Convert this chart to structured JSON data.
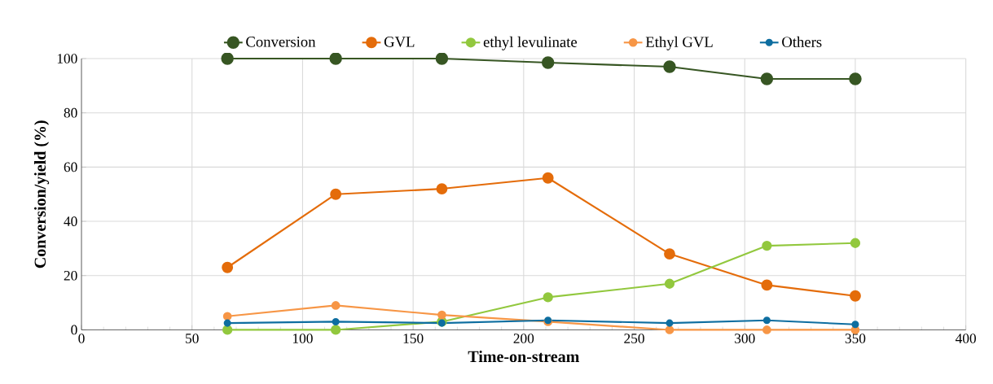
{
  "chart_data": {
    "type": "line",
    "xlabel": "Time-on-stream",
    "ylabel": "Conversion/yield  (%)",
    "x": [
      66,
      115,
      163,
      211,
      266,
      310,
      350
    ],
    "series": [
      {
        "name": "Conversion",
        "color": "#375623",
        "values": [
          100,
          100,
          100,
          98.5,
          97,
          92.5,
          92.5
        ]
      },
      {
        "name": "GVL",
        "color": "#e46c0a",
        "values": [
          23,
          50,
          52,
          56,
          28,
          16.5,
          12.5
        ]
      },
      {
        "name": "ethyl levulinate",
        "color": "#92c83e",
        "values": [
          0,
          0,
          3,
          12,
          17,
          31,
          32
        ]
      },
      {
        "name": "Ethyl GVL",
        "color": "#f79646",
        "values": [
          5,
          9,
          5.5,
          3,
          0,
          0,
          0
        ]
      },
      {
        "name": "Others",
        "color": "#0e6ea0",
        "values": [
          2.5,
          3,
          2.5,
          3.5,
          2.5,
          3.5,
          2
        ]
      }
    ],
    "xlim": [
      0,
      400
    ],
    "xticks": [
      0,
      50,
      100,
      150,
      200,
      250,
      300,
      350,
      400
    ],
    "ylim": [
      0,
      100
    ],
    "yticks": [
      0,
      20,
      40,
      60,
      80,
      100
    ],
    "grid": true,
    "legend": "top",
    "marker": "circle",
    "line_style": "solid"
  }
}
